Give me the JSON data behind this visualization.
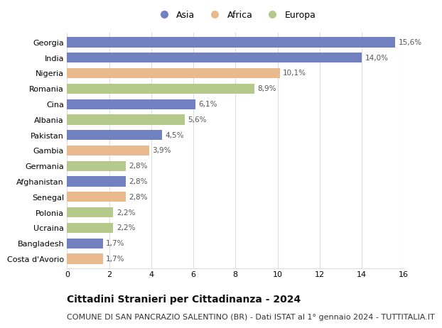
{
  "categories": [
    "Georgia",
    "India",
    "Nigeria",
    "Romania",
    "Cina",
    "Albania",
    "Pakistan",
    "Gambia",
    "Germania",
    "Afghanistan",
    "Senegal",
    "Polonia",
    "Ucraina",
    "Bangladesh",
    "Costa d'Avorio"
  ],
  "values": [
    15.6,
    14.0,
    10.1,
    8.9,
    6.1,
    5.6,
    4.5,
    3.9,
    2.8,
    2.8,
    2.8,
    2.2,
    2.2,
    1.7,
    1.7
  ],
  "labels": [
    "15,6%",
    "14,0%",
    "10,1%",
    "8,9%",
    "6,1%",
    "5,6%",
    "4,5%",
    "3,9%",
    "2,8%",
    "2,8%",
    "2,8%",
    "2,2%",
    "2,2%",
    "1,7%",
    "1,7%"
  ],
  "continent": [
    "Asia",
    "Asia",
    "Africa",
    "Europa",
    "Asia",
    "Europa",
    "Asia",
    "Africa",
    "Europa",
    "Asia",
    "Africa",
    "Europa",
    "Europa",
    "Asia",
    "Africa"
  ],
  "colors": {
    "Asia": "#7080c0",
    "Africa": "#e8b98a",
    "Europa": "#b5c98a"
  },
  "legend_entries": [
    "Asia",
    "Africa",
    "Europa"
  ],
  "xlim": [
    0,
    16
  ],
  "xticks": [
    0,
    2,
    4,
    6,
    8,
    10,
    12,
    14,
    16
  ],
  "title": "Cittadini Stranieri per Cittadinanza - 2024",
  "subtitle": "COMUNE DI SAN PANCRAZIO SALENTINO (BR) - Dati ISTAT al 1° gennaio 2024 - TUTTITALIA.IT",
  "title_fontsize": 10,
  "subtitle_fontsize": 8,
  "bar_height": 0.65,
  "grid_color": "#dddddd",
  "background_color": "#ffffff",
  "label_fontsize": 7.5,
  "ytick_fontsize": 8,
  "xtick_fontsize": 8,
  "legend_fontsize": 9
}
